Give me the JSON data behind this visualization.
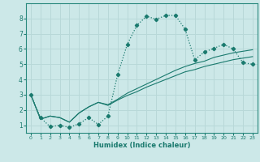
{
  "bg_color": "#cce8e8",
  "grid_color": "#b0d4d4",
  "line_color": "#1a7a6e",
  "xlabel": "Humidex (Indice chaleur)",
  "xlim": [
    -0.5,
    23.5
  ],
  "ylim": [
    0.5,
    9.0
  ],
  "xticks": [
    0,
    1,
    2,
    3,
    4,
    5,
    6,
    7,
    8,
    9,
    10,
    11,
    12,
    13,
    14,
    15,
    16,
    17,
    18,
    19,
    20,
    21,
    22,
    23
  ],
  "yticks": [
    1,
    2,
    3,
    4,
    5,
    6,
    7,
    8
  ],
  "series1_x": [
    0,
    1,
    2,
    3,
    4,
    5,
    6,
    7,
    8,
    9,
    10,
    11,
    12,
    13,
    14,
    15,
    16,
    17,
    18,
    19,
    20,
    21,
    22,
    23
  ],
  "series1_y": [
    3.0,
    1.5,
    0.9,
    1.0,
    0.85,
    1.1,
    1.5,
    1.05,
    1.6,
    4.3,
    6.3,
    7.55,
    8.15,
    7.95,
    8.2,
    8.2,
    7.3,
    5.3,
    5.8,
    6.05,
    6.3,
    6.0,
    5.1,
    5.0
  ],
  "series2_x": [
    0,
    1,
    2,
    3,
    4,
    5,
    6,
    7,
    8,
    9,
    10,
    11,
    12,
    13,
    14,
    15,
    16,
    17,
    18,
    19,
    20,
    21,
    22,
    23
  ],
  "series2_y": [
    3.0,
    1.4,
    1.6,
    1.5,
    1.2,
    1.8,
    2.2,
    2.5,
    2.35,
    2.7,
    3.1,
    3.4,
    3.7,
    4.0,
    4.3,
    4.6,
    4.85,
    5.05,
    5.2,
    5.45,
    5.6,
    5.75,
    5.85,
    5.95
  ],
  "series3_x": [
    0,
    1,
    2,
    3,
    4,
    5,
    6,
    7,
    8,
    9,
    10,
    11,
    12,
    13,
    14,
    15,
    16,
    17,
    18,
    19,
    20,
    21,
    22,
    23
  ],
  "series3_y": [
    3.0,
    1.4,
    1.6,
    1.5,
    1.2,
    1.8,
    2.2,
    2.5,
    2.3,
    2.65,
    2.95,
    3.2,
    3.5,
    3.75,
    4.0,
    4.25,
    4.5,
    4.65,
    4.85,
    5.0,
    5.15,
    5.3,
    5.4,
    5.5
  ]
}
